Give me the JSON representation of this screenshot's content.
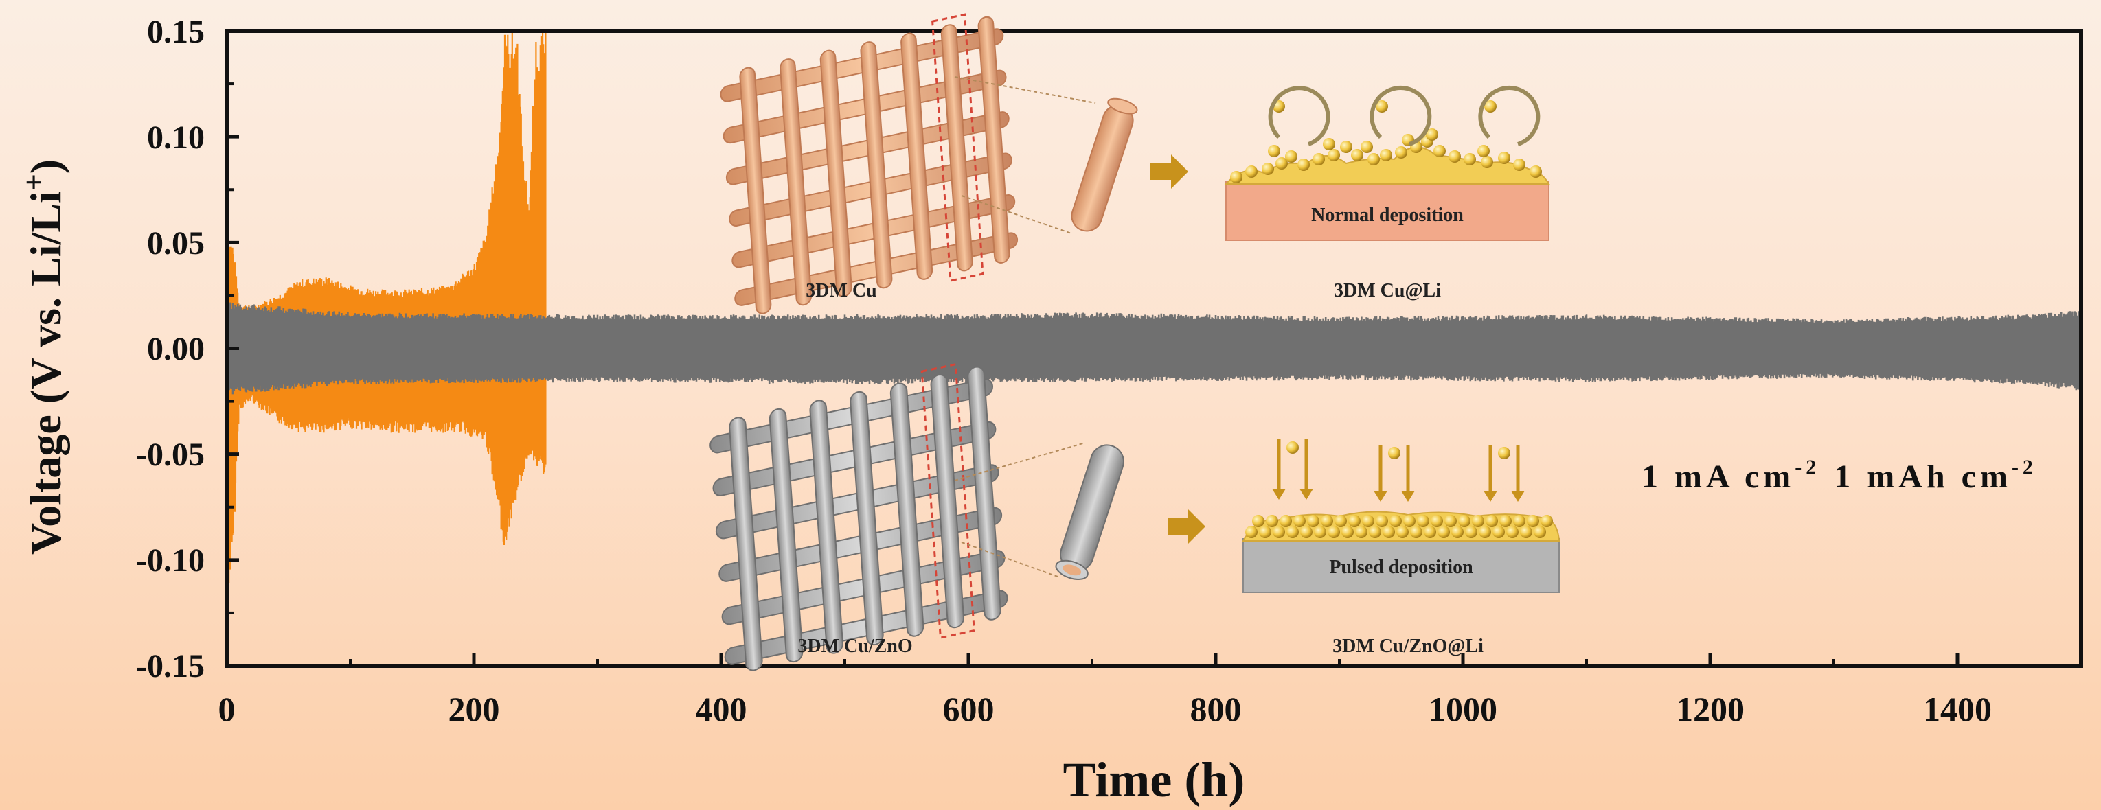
{
  "chart_data": {
    "type": "line",
    "xlabel": "Time (h)",
    "ylabel_main": "Voltage (V vs. Li/Li",
    "ylabel_sup": "+",
    "ylabel_close": ")",
    "xlim": [
      0,
      1500
    ],
    "ylim": [
      -0.15,
      0.15
    ],
    "x_ticks": [
      "0",
      "200",
      "400",
      "600",
      "800",
      "1000",
      "1200",
      "1400"
    ],
    "y_ticks": [
      "0.15",
      "0.10",
      "0.05",
      "0.00",
      "-0.05",
      "-0.10",
      "-0.15"
    ],
    "y_tick_values": [
      0.15,
      0.1,
      0.05,
      0.0,
      -0.05,
      -0.1,
      -0.15
    ],
    "x_tick_values": [
      0,
      200,
      400,
      600,
      800,
      1000,
      1200,
      1400
    ],
    "grid": false,
    "series": [
      {
        "color": "#f58a14",
        "upper_envelope": [
          [
            0,
            0.052
          ],
          [
            5,
            0.05
          ],
          [
            10,
            0.022
          ],
          [
            20,
            0.02
          ],
          [
            40,
            0.025
          ],
          [
            60,
            0.033
          ],
          [
            80,
            0.034
          ],
          [
            100,
            0.03
          ],
          [
            120,
            0.028
          ],
          [
            150,
            0.028
          ],
          [
            180,
            0.03
          ],
          [
            200,
            0.04
          ],
          [
            210,
            0.055
          ],
          [
            220,
            0.1
          ],
          [
            225,
            0.15
          ],
          [
            235,
            0.15
          ],
          [
            240,
            0.09
          ],
          [
            245,
            0.07
          ],
          [
            250,
            0.15
          ],
          [
            258,
            0.15
          ]
        ],
        "lower_envelope": [
          [
            0,
            -0.12
          ],
          [
            5,
            -0.1
          ],
          [
            10,
            -0.03
          ],
          [
            20,
            -0.025
          ],
          [
            40,
            -0.035
          ],
          [
            60,
            -0.04
          ],
          [
            80,
            -0.04
          ],
          [
            100,
            -0.038
          ],
          [
            130,
            -0.04
          ],
          [
            160,
            -0.04
          ],
          [
            190,
            -0.04
          ],
          [
            210,
            -0.045
          ],
          [
            220,
            -0.08
          ],
          [
            225,
            -0.095
          ],
          [
            235,
            -0.07
          ],
          [
            245,
            -0.05
          ],
          [
            255,
            -0.06
          ],
          [
            258,
            -0.06
          ]
        ]
      },
      {
        "color": "#707070",
        "upper_envelope": [
          [
            0,
            0.022
          ],
          [
            100,
            0.017
          ],
          [
            300,
            0.016
          ],
          [
            500,
            0.016
          ],
          [
            700,
            0.017
          ],
          [
            900,
            0.015
          ],
          [
            1100,
            0.016
          ],
          [
            1300,
            0.014
          ],
          [
            1450,
            0.016
          ],
          [
            1500,
            0.018
          ]
        ],
        "lower_envelope": [
          [
            0,
            -0.022
          ],
          [
            100,
            -0.017
          ],
          [
            300,
            -0.016
          ],
          [
            500,
            -0.017
          ],
          [
            700,
            -0.016
          ],
          [
            900,
            -0.015
          ],
          [
            1100,
            -0.016
          ],
          [
            1300,
            -0.014
          ],
          [
            1450,
            -0.017
          ],
          [
            1500,
            -0.02
          ]
        ]
      }
    ],
    "annotations": {
      "current_label": "1 mA cm",
      "current_exp": "-2",
      "capacity_label": "1 mAh cm",
      "capacity_exp": "-2",
      "top_left_caption": "3DM Cu",
      "top_right_caption": "3DM Cu@Li",
      "top_box_label": "Normal deposition",
      "bottom_left_caption": "3DM Cu/ZnO",
      "bottom_right_caption": "3DM Cu/ZnO@Li",
      "bottom_box_label": "Pulsed deposition"
    }
  },
  "colors": {
    "copper": "#e9ad82",
    "copper_dark": "#c98560",
    "grey_mesh": "#a9a9a9",
    "grey_dark": "#7b7b7b",
    "gold": "#f2cd55",
    "arrow": "#c8921c",
    "red_dashed": "#d64537"
  }
}
